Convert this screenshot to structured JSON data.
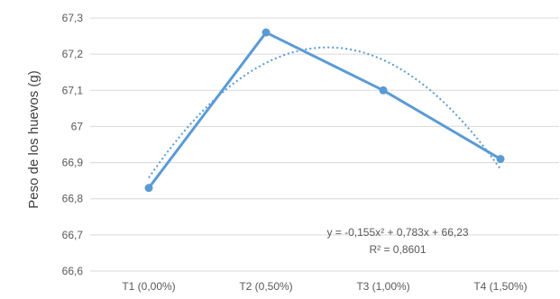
{
  "chart_data": {
    "type": "line",
    "title": "",
    "xlabel": "",
    "ylabel": "Peso de los huevos (g)",
    "categories": [
      "T1 (0,00%)",
      "T2 (0,50%)",
      "T3 (1,00%)",
      "T4 (1,50%)"
    ],
    "series": [
      {
        "values": [
          66.83,
          67.26,
          67.1,
          66.91
        ],
        "color": "#5b9bd5",
        "style": "solid-with-markers"
      }
    ],
    "trendline": {
      "kind": "polynomial-order-2",
      "style": "dotted",
      "color": "#5b9bd5",
      "coefficients": {
        "a": -0.155,
        "b": 0.783,
        "c": 66.23
      },
      "equation": "y = -0,155x² + 0,783x + 66,23",
      "r_squared": "R² = 0,8601"
    },
    "ylim": [
      66.6,
      67.3
    ],
    "ytick_values": [
      66.6,
      66.7,
      66.8,
      66.9,
      67.0,
      67.1,
      67.2,
      67.3
    ],
    "ytick_labels": [
      "66,6",
      "66,7",
      "66,8",
      "66,9",
      "67",
      "67,1",
      "67,2",
      "67,3"
    ],
    "grid": true,
    "gridline_color": "#d9d9d9",
    "legend": "none"
  }
}
